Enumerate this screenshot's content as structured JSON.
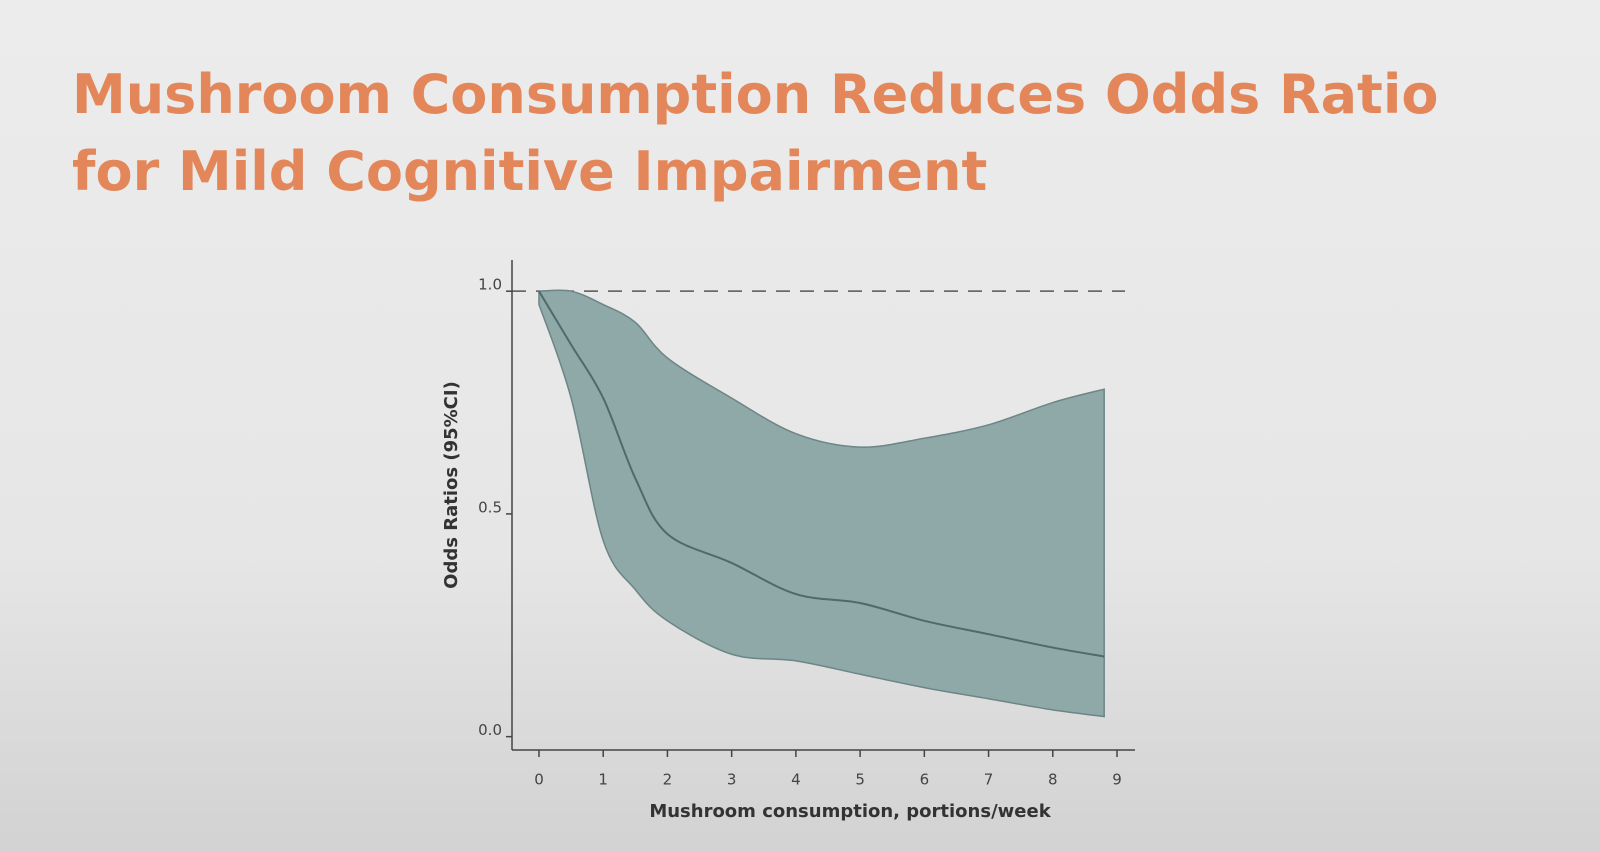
{
  "chart_data": {
    "type": "line",
    "title_lines": [
      "Mushroom Consumption Reduces Odds Ratio",
      "for Mild Cognitive Impairment"
    ],
    "x_label": "Mushroom consumption, portions/week",
    "y_label": "Odds Ratios (95%CI)",
    "x": [
      0,
      0.5,
      1,
      1.5,
      2,
      3,
      4,
      5,
      6,
      7,
      8,
      8.8
    ],
    "series": [
      {
        "name": "Odds ratio",
        "color": "#4f6a6a",
        "values": [
          1.0,
          0.88,
          0.76,
          0.58,
          0.455,
          0.39,
          0.32,
          0.3,
          0.26,
          0.23,
          0.2,
          0.18
        ]
      }
    ],
    "band": {
      "color": "#8fa9a8",
      "upper": [
        1.0,
        1.0,
        0.97,
        0.93,
        0.85,
        0.76,
        0.68,
        0.65,
        0.67,
        0.7,
        0.75,
        0.78
      ],
      "lower": [
        0.97,
        0.76,
        0.44,
        0.33,
        0.26,
        0.185,
        0.17,
        0.14,
        0.11,
        0.085,
        0.06,
        0.045
      ]
    },
    "reference_line": 1.0,
    "xlim": [
      -0.42,
      9.28
    ],
    "ylim": [
      -0.03,
      1.07
    ],
    "xticks": [
      0,
      1,
      2,
      3,
      4,
      5,
      6,
      7,
      8,
      9
    ],
    "yticks": [
      {
        "value": 0,
        "label": "0.0"
      },
      {
        "value": 0.5,
        "label": "0.5"
      },
      {
        "value": 1,
        "label": "1.0"
      }
    ]
  }
}
